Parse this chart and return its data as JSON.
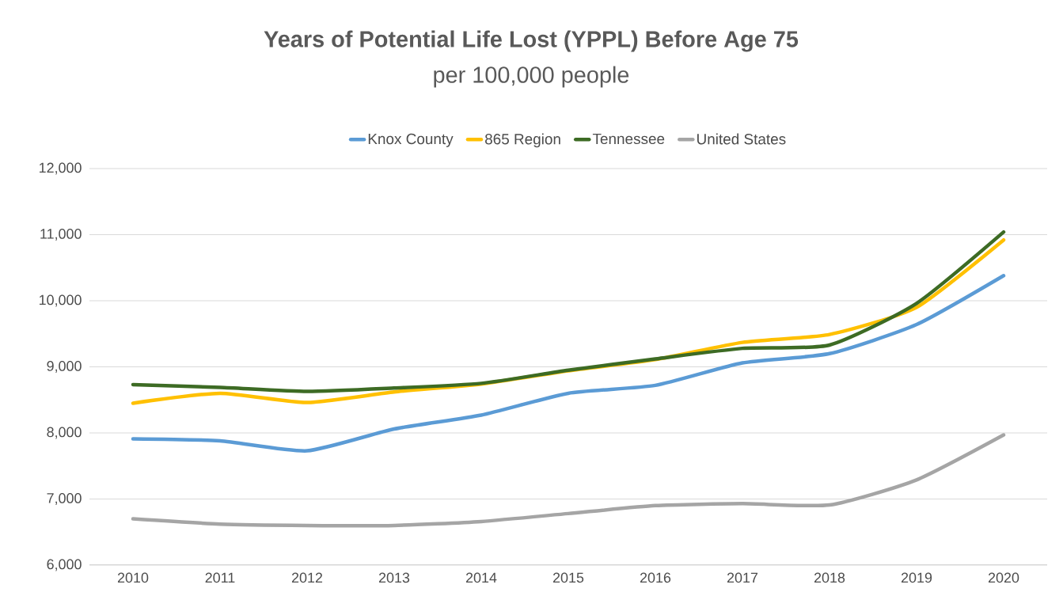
{
  "chart_data": {
    "type": "line",
    "title": "Years of Potential Life Lost (YPPL) Before Age 75",
    "subtitle": "per 100,000 people",
    "categories": [
      "2010",
      "2011",
      "2012",
      "2013",
      "2014",
      "2015",
      "2016",
      "2017",
      "2018",
      "2019",
      "2020"
    ],
    "series": [
      {
        "name": "Knox County",
        "color": "#5b9bd5",
        "values": [
          7910,
          7880,
          7730,
          8060,
          8270,
          8600,
          8720,
          9060,
          9200,
          9640,
          10380
        ]
      },
      {
        "name": "865 Region",
        "color": "#ffc000",
        "values": [
          8450,
          8600,
          8460,
          8620,
          8740,
          8940,
          9110,
          9370,
          9490,
          9900,
          10920
        ]
      },
      {
        "name": "Tennessee",
        "color": "#3d6b24",
        "values": [
          8730,
          8690,
          8630,
          8680,
          8750,
          8950,
          9120,
          9280,
          9330,
          9960,
          11040
        ]
      },
      {
        "name": "United States",
        "color": "#a5a5a5",
        "values": [
          6700,
          6620,
          6600,
          6600,
          6660,
          6780,
          6900,
          6930,
          6910,
          7290,
          7970
        ]
      }
    ],
    "ylim": [
      6000,
      12000
    ],
    "yticks": [
      {
        "value": 6000,
        "label": "6,000"
      },
      {
        "value": 7000,
        "label": "7,000"
      },
      {
        "value": 8000,
        "label": "8,000"
      },
      {
        "value": 9000,
        "label": "9,000"
      },
      {
        "value": 10000,
        "label": "10,000"
      },
      {
        "value": 11000,
        "label": "11,000"
      },
      {
        "value": 12000,
        "label": "12,000"
      }
    ],
    "grid": "y",
    "legend": "top",
    "marker": "none",
    "line_style": "solid"
  }
}
